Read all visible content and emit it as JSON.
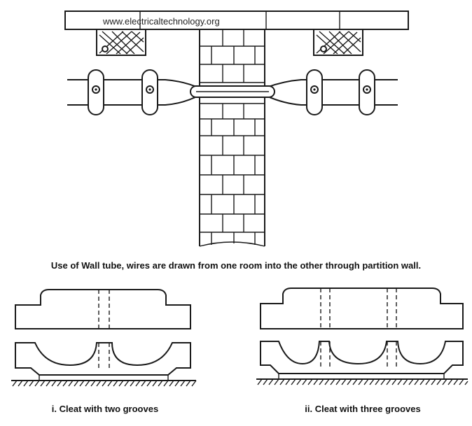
{
  "watermark": "www.electricaltechnology.org",
  "captions": {
    "top": "Use of Wall tube, wires are drawn from one room into the other through partition wall.",
    "cleat_two": "i. Cleat with two grooves",
    "cleat_three": "ii. Cleat with three grooves"
  },
  "colors": {
    "line": "#1a1a1a",
    "background": "#ffffff"
  }
}
